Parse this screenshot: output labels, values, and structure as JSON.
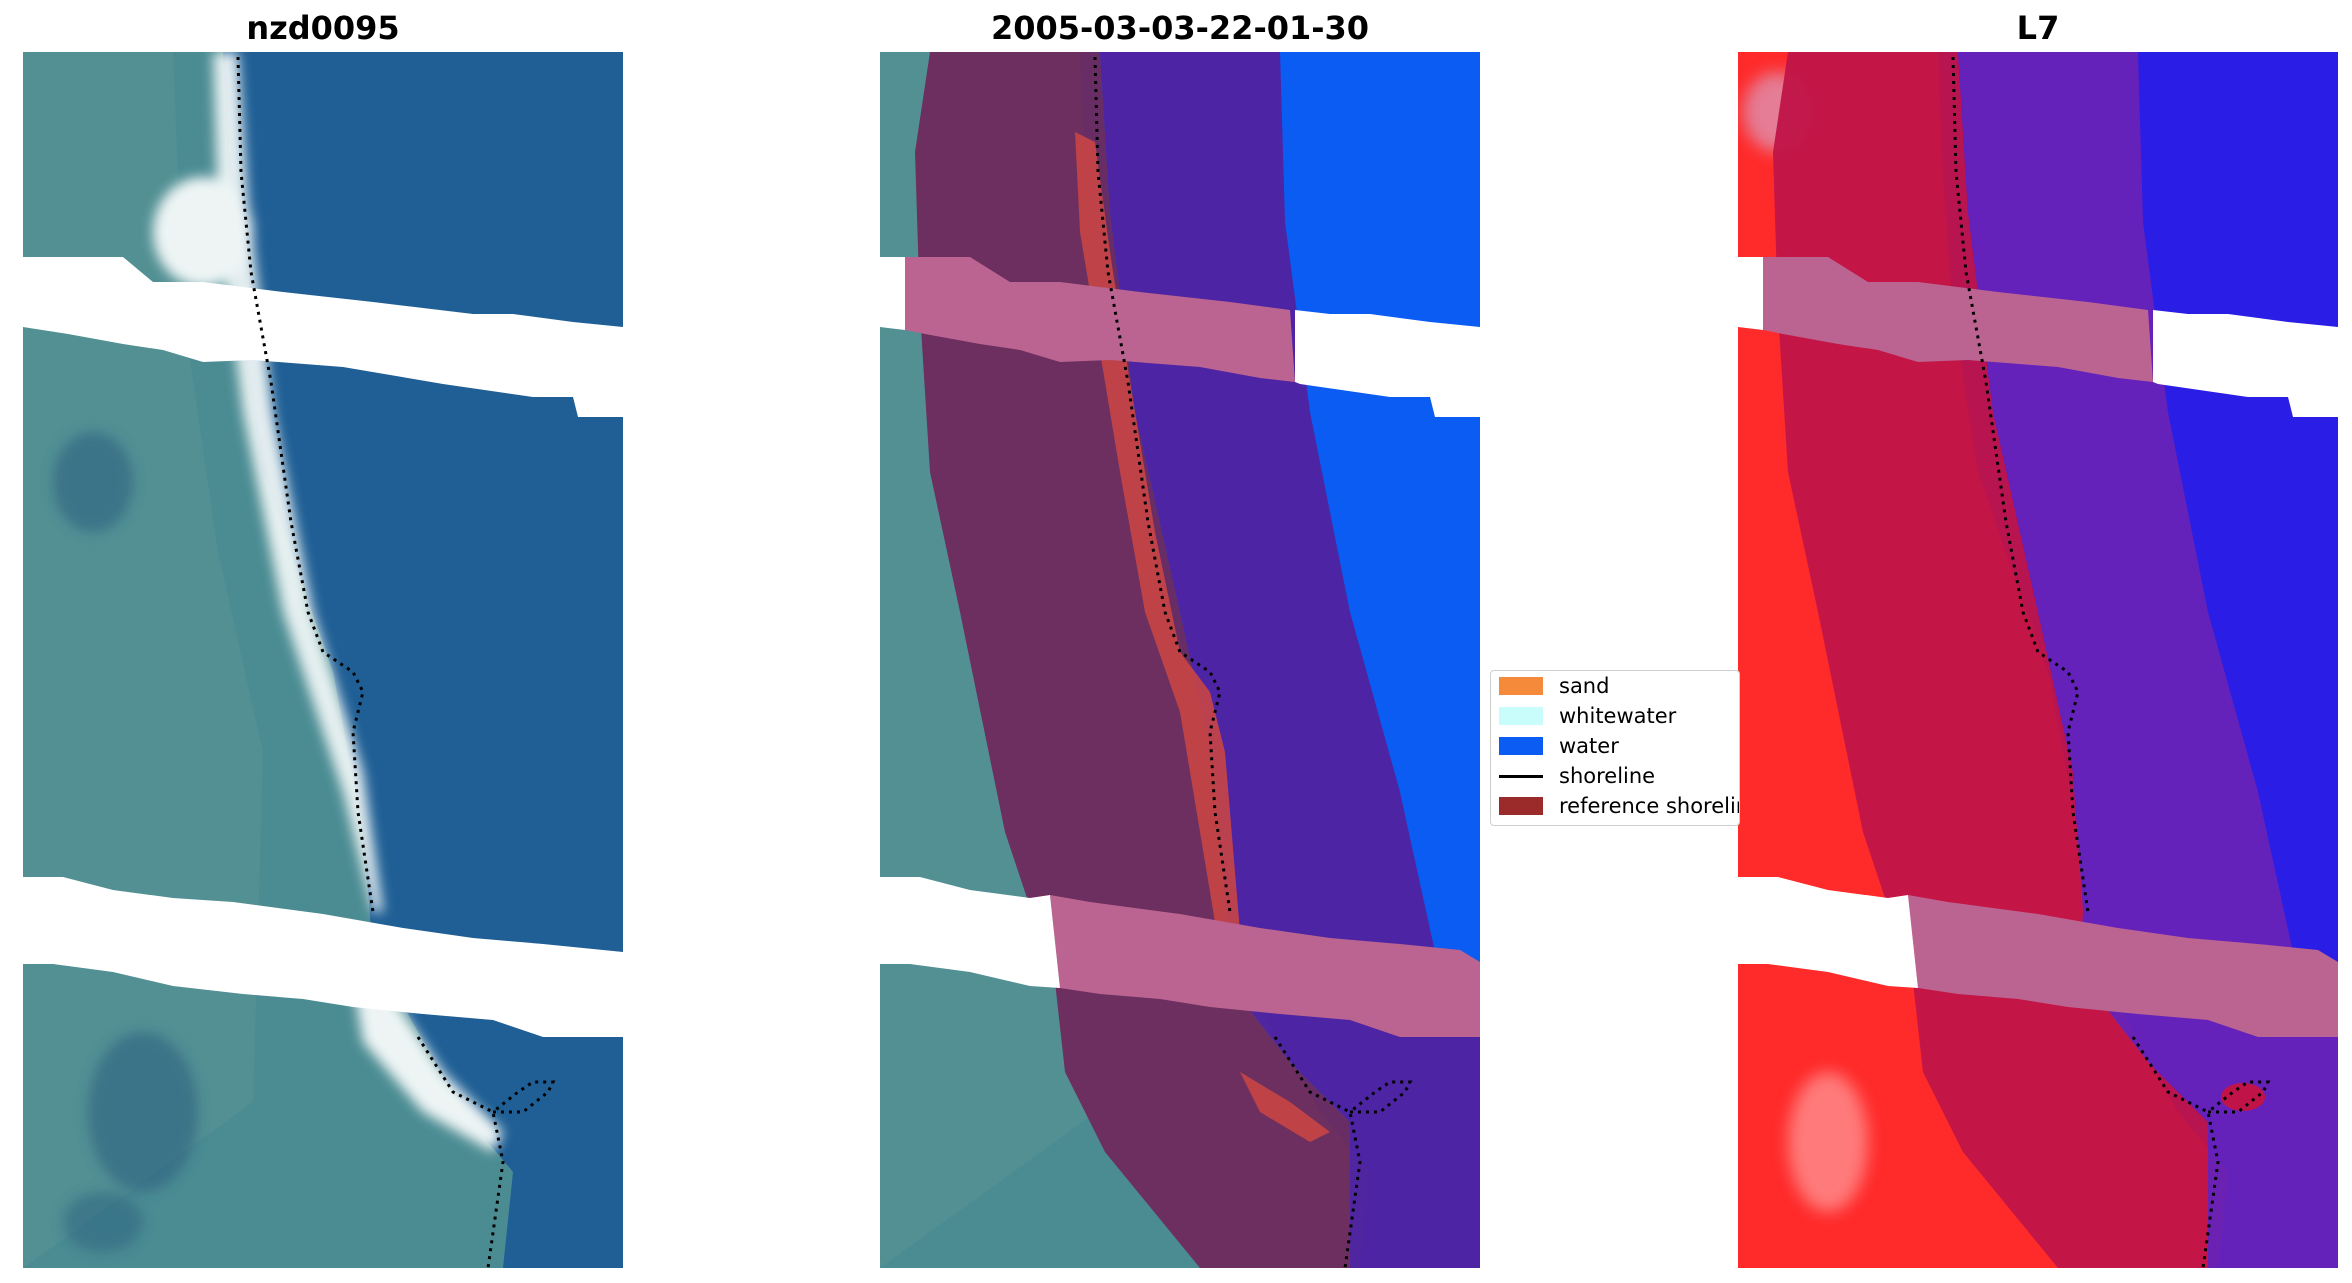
{
  "panels": [
    {
      "title": "nzd0095",
      "type": "rgb"
    },
    {
      "title": "2005-03-03-22-01-30",
      "type": "classified"
    },
    {
      "title": "L7",
      "type": "index"
    }
  ],
  "legend": {
    "items": [
      {
        "label": "sand",
        "color": "#f68a3b",
        "kind": "patch"
      },
      {
        "label": "whitewater",
        "color": "#c9fdfb",
        "kind": "patch"
      },
      {
        "label": "water",
        "color": "#0a5cf2",
        "kind": "patch"
      },
      {
        "label": "shoreline",
        "color": "#000000",
        "kind": "line"
      },
      {
        "label": "reference shoreline",
        "color": "#9b2b2b",
        "kind": "patch"
      }
    ]
  },
  "colors": {
    "land": "#4b8c93",
    "sea": "#1f5f95",
    "water_class": "#0a5cf2",
    "buffer_land": "#6e2a5c",
    "buffer_water": "#5022a0",
    "sand_class": "#c94545",
    "cloud_stripe": "#bb6491",
    "index_land": "#ff2a2a",
    "index_water": "#2a1de6"
  }
}
